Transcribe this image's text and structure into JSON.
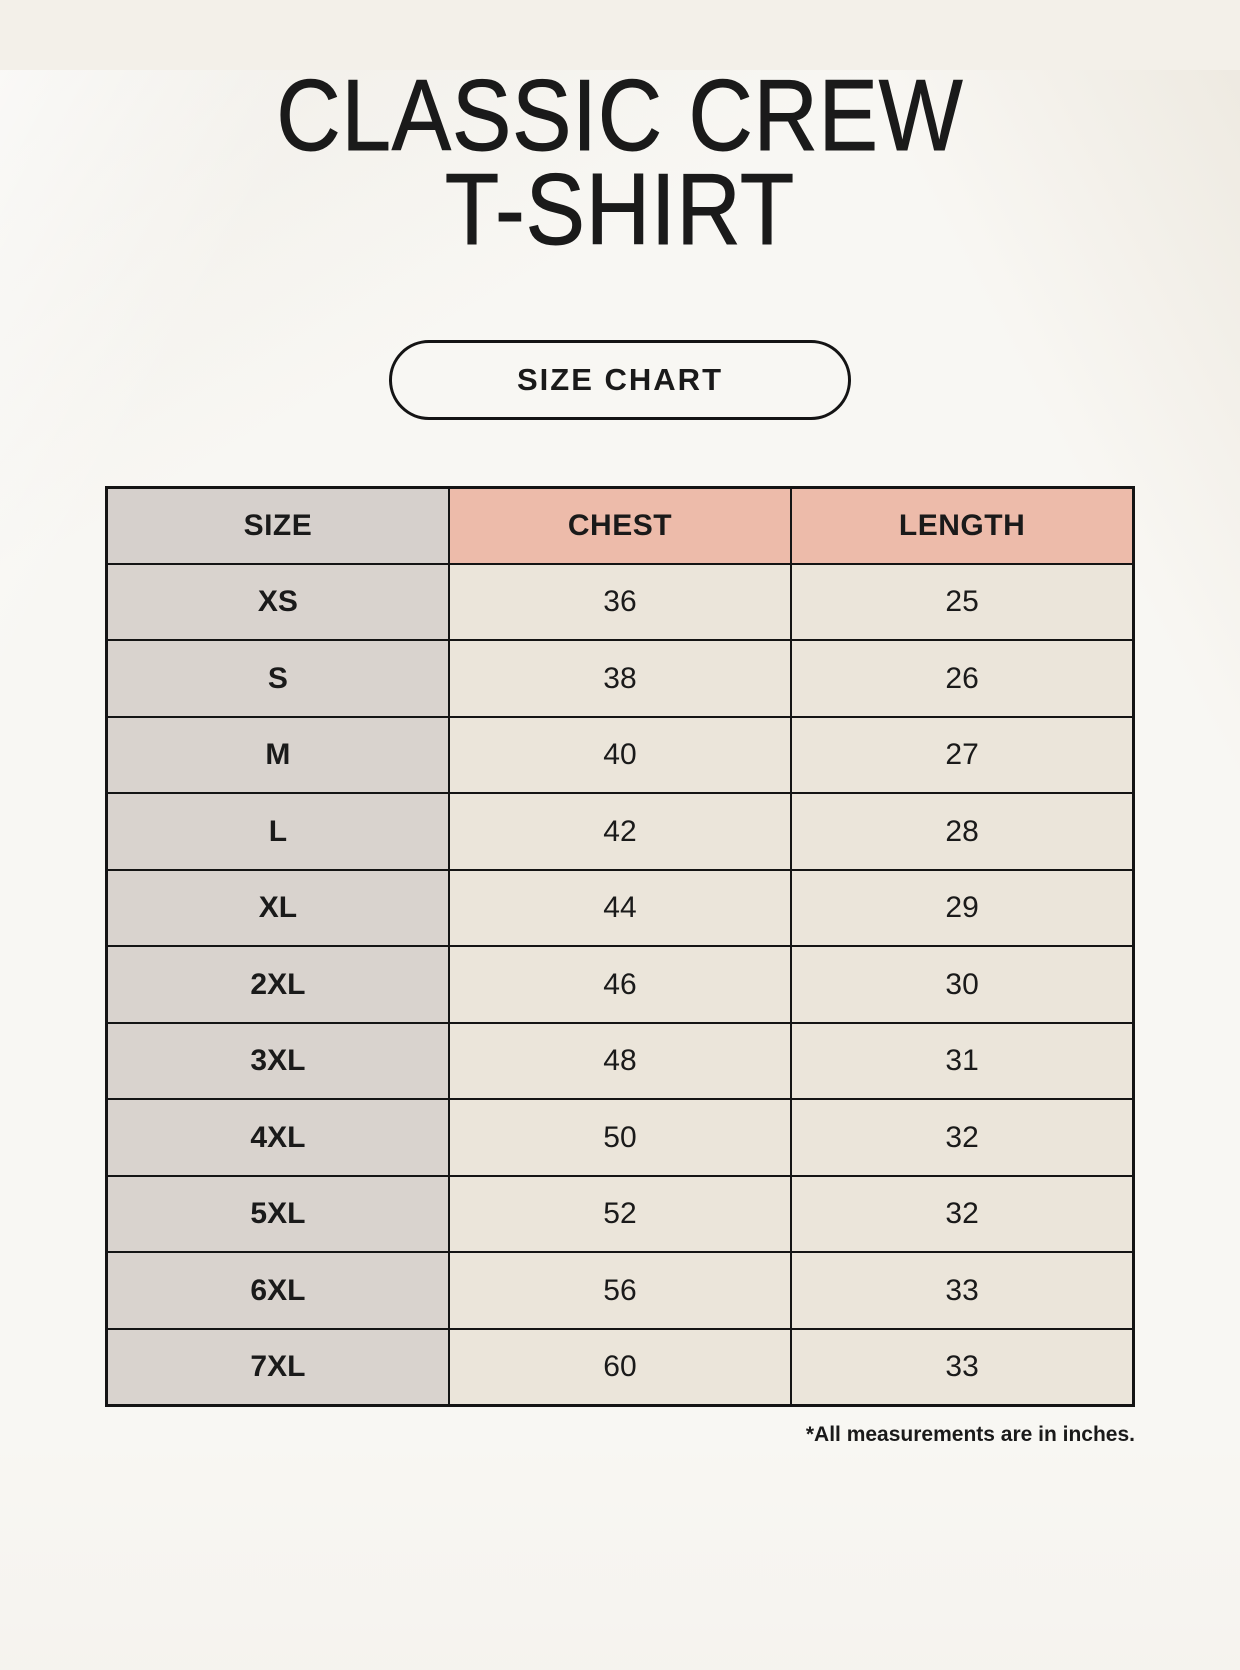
{
  "header": {
    "title_line1": "CLASSIC CREW",
    "title_line2": "T-SHIRT",
    "badge_label": "SIZE CHART"
  },
  "chart_data": {
    "type": "table",
    "title": "CLASSIC CREW T-SHIRT",
    "subtitle": "SIZE CHART",
    "columns": [
      "SIZE",
      "CHEST",
      "LENGTH"
    ],
    "rows": [
      [
        "XS",
        36,
        25
      ],
      [
        "S",
        38,
        26
      ],
      [
        "M",
        40,
        27
      ],
      [
        "L",
        42,
        28
      ],
      [
        "XL",
        44,
        29
      ],
      [
        "2XL",
        46,
        30
      ],
      [
        "3XL",
        48,
        31
      ],
      [
        "4XL",
        50,
        32
      ],
      [
        "5XL",
        52,
        32
      ],
      [
        "6XL",
        56,
        33
      ],
      [
        "7XL",
        60,
        33
      ]
    ],
    "note": "*All measurements are in inches.",
    "units": "inches"
  },
  "footnote": "*All measurements are in inches.",
  "colors": {
    "background": "#f3f0e9",
    "header_size_bg": "#d6d0cc",
    "header_measure_bg": "#edbbaa",
    "size_col_bg": "#d9d3ce",
    "data_cell_bg": "#ebe5da",
    "border": "#141414",
    "text": "#1a1a1a"
  }
}
